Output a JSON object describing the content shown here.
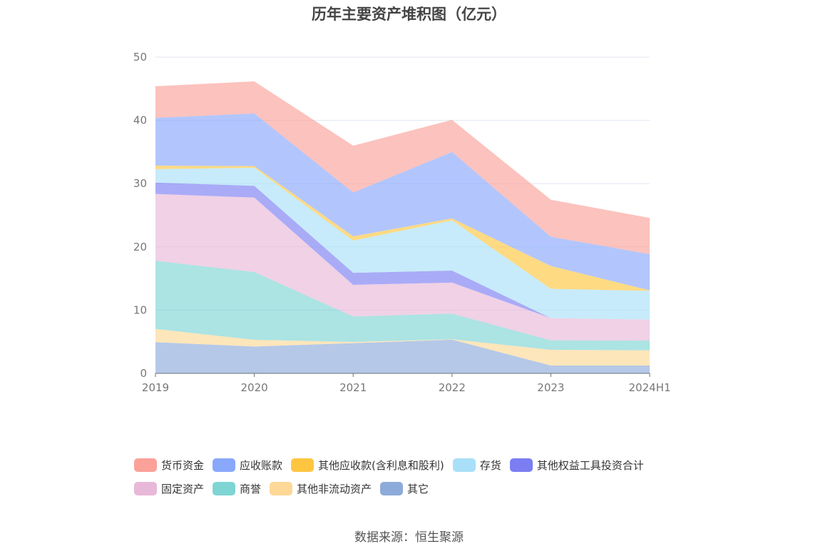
{
  "chart_data": {
    "type": "area",
    "stacked": true,
    "title": "历年主要资产堆积图（亿元）",
    "categories": [
      "2019",
      "2020",
      "2021",
      "2022",
      "2023",
      "2024H1"
    ],
    "ylim": [
      0,
      50
    ],
    "yticks": [
      0,
      10,
      20,
      30,
      40,
      50
    ],
    "grid": true,
    "legend_position": "bottom",
    "series": [
      {
        "name": "其它",
        "color": "#8dabda",
        "values": [
          4.93,
          4.25,
          4.78,
          5.34,
          1.24,
          1.24
        ]
      },
      {
        "name": "其他非流动资产",
        "color": "#fed897",
        "values": [
          2.1,
          1.05,
          0.19,
          0.05,
          2.48,
          2.41
        ]
      },
      {
        "name": "商誉",
        "color": "#7fd4d4",
        "values": [
          10.77,
          10.73,
          4.03,
          4.06,
          1.51,
          1.54
        ]
      },
      {
        "name": "固定资产",
        "color": "#e8b8d8",
        "values": [
          10.57,
          11.77,
          5.0,
          4.9,
          3.5,
          3.31
        ]
      },
      {
        "name": "其他权益工具投资合计",
        "color": "#7b7ef2",
        "values": [
          1.8,
          1.85,
          1.9,
          1.9,
          0,
          0
        ]
      },
      {
        "name": "存货",
        "color": "#a9e0f8",
        "values": [
          2.13,
          2.85,
          5.1,
          7.95,
          4.63,
          4.55
        ]
      },
      {
        "name": "其他应收款(含利息和股利)",
        "color": "#fec640",
        "values": [
          0.54,
          0.27,
          0.67,
          0.3,
          3.61,
          0.08
        ]
      },
      {
        "name": "应收账款",
        "color": "#89a8fc",
        "values": [
          7.56,
          8.33,
          6.93,
          10.5,
          4.63,
          5.72
        ]
      },
      {
        "name": "货币资金",
        "color": "#fba199",
        "values": [
          5.0,
          5.06,
          7.4,
          5.08,
          5.86,
          5.72
        ]
      }
    ],
    "legend_order": [
      "货币资金",
      "应收账款",
      "其他应收款(含利息和股利)",
      "存货",
      "其他权益工具投资合计",
      "固定资产",
      "商誉",
      "其他非流动资产",
      "其它"
    ]
  },
  "source": "数据来源：恒生聚源"
}
